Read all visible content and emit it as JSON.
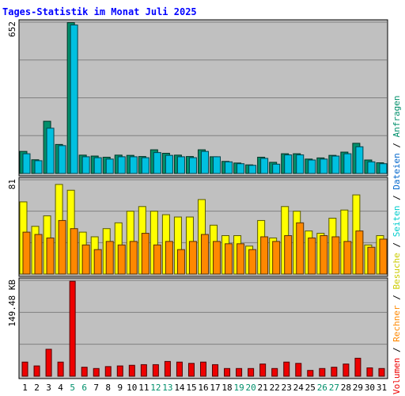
{
  "chart_data": {
    "type": "bar",
    "title": "Tages-Statistik im Monat Juli 2025",
    "categories": [
      "1",
      "2",
      "3",
      "4",
      "5",
      "6",
      "7",
      "8",
      "9",
      "10",
      "11",
      "12",
      "13",
      "14",
      "15",
      "16",
      "17",
      "18",
      "19",
      "20",
      "21",
      "22",
      "23",
      "24",
      "25",
      "26",
      "27",
      "28",
      "29",
      "30",
      "31"
    ],
    "weekend_days": [
      "5",
      "6",
      "12",
      "13",
      "19",
      "20",
      "26",
      "27"
    ],
    "panels": [
      {
        "id": "requests-files",
        "ylabel_max": "652",
        "ylim": [
          0,
          652
        ],
        "series": [
          {
            "name": "Anfragen",
            "color": "#008f6b",
            "values": [
              95,
              59,
              225,
              125,
              650,
              79,
              75,
              70,
              79,
              78,
              73,
              102,
              87,
              79,
              73,
              102,
              72,
              52,
              45,
              37,
              70,
              48,
              85,
              85,
              62,
              67,
              78,
              92,
              130,
              58,
              46
            ]
          },
          {
            "name": "Dateien",
            "color": "#00c0e0",
            "values": [
              85,
              55,
              195,
              120,
              640,
              72,
              68,
              62,
              72,
              72,
              68,
              90,
              78,
              72,
              68,
              95,
              72,
              50,
              42,
              35,
              65,
              40,
              80,
              80,
              58,
              62,
              75,
              85,
              115,
              50,
              42
            ]
          }
        ]
      },
      {
        "id": "pages-visits",
        "ylabel_max": "81",
        "ylim": [
          0,
          81
        ],
        "series": [
          {
            "name": "Besuche",
            "color": "#ffff00",
            "values": [
              62,
              41,
              50,
              77,
              72,
              36,
              32,
              39,
              44,
              54,
              58,
              54,
              51,
              49,
              49,
              64,
              42,
              33,
              33,
              24,
              46,
              31,
              58,
              54,
              37,
              35,
              48,
              55,
              68,
              25,
              33
            ]
          },
          {
            "name": "Seiten",
            "color": "#ff8800",
            "values": [
              36,
              34,
              31,
              46,
              39,
              25,
              21,
              28,
              25,
              28,
              35,
              25,
              28,
              21,
              28,
              34,
              28,
              26,
              26,
              21,
              32,
              28,
              33,
              44,
              31,
              33,
              32,
              28,
              37,
              23,
              30
            ]
          }
        ]
      },
      {
        "id": "volume",
        "ylabel_max": "149.48 KB",
        "ylim": [
          0,
          149.48
        ],
        "series": [
          {
            "name": "Volumen",
            "color": "#ee0000",
            "values": [
              22,
              16,
              42,
              22,
              148,
              14,
              12,
              15,
              16,
              17,
              18,
              18,
              23,
              22,
              20,
              22,
              18,
              12,
              12,
              12,
              19,
              12,
              22,
              20,
              9,
              12,
              14,
              19,
              28,
              13,
              12
            ]
          }
        ]
      }
    ],
    "legend_order": [
      "Volumen",
      "Rechner",
      "Besuche",
      "Seiten",
      "Dateien",
      "Anfragen"
    ],
    "legend_colors": {
      "Volumen": "#ee0000",
      "Rechner": "#ff8800",
      "Besuche": "#cccc00",
      "Seiten": "#00cccc",
      "Dateien": "#0066cc",
      "Anfragen": "#008f6b"
    },
    "legend_separator": " / ",
    "colors": {
      "plot_bg": "#c0c0c0",
      "grid": "#808080",
      "title": "#0000ff",
      "weekend_label": "#00906b"
    }
  }
}
